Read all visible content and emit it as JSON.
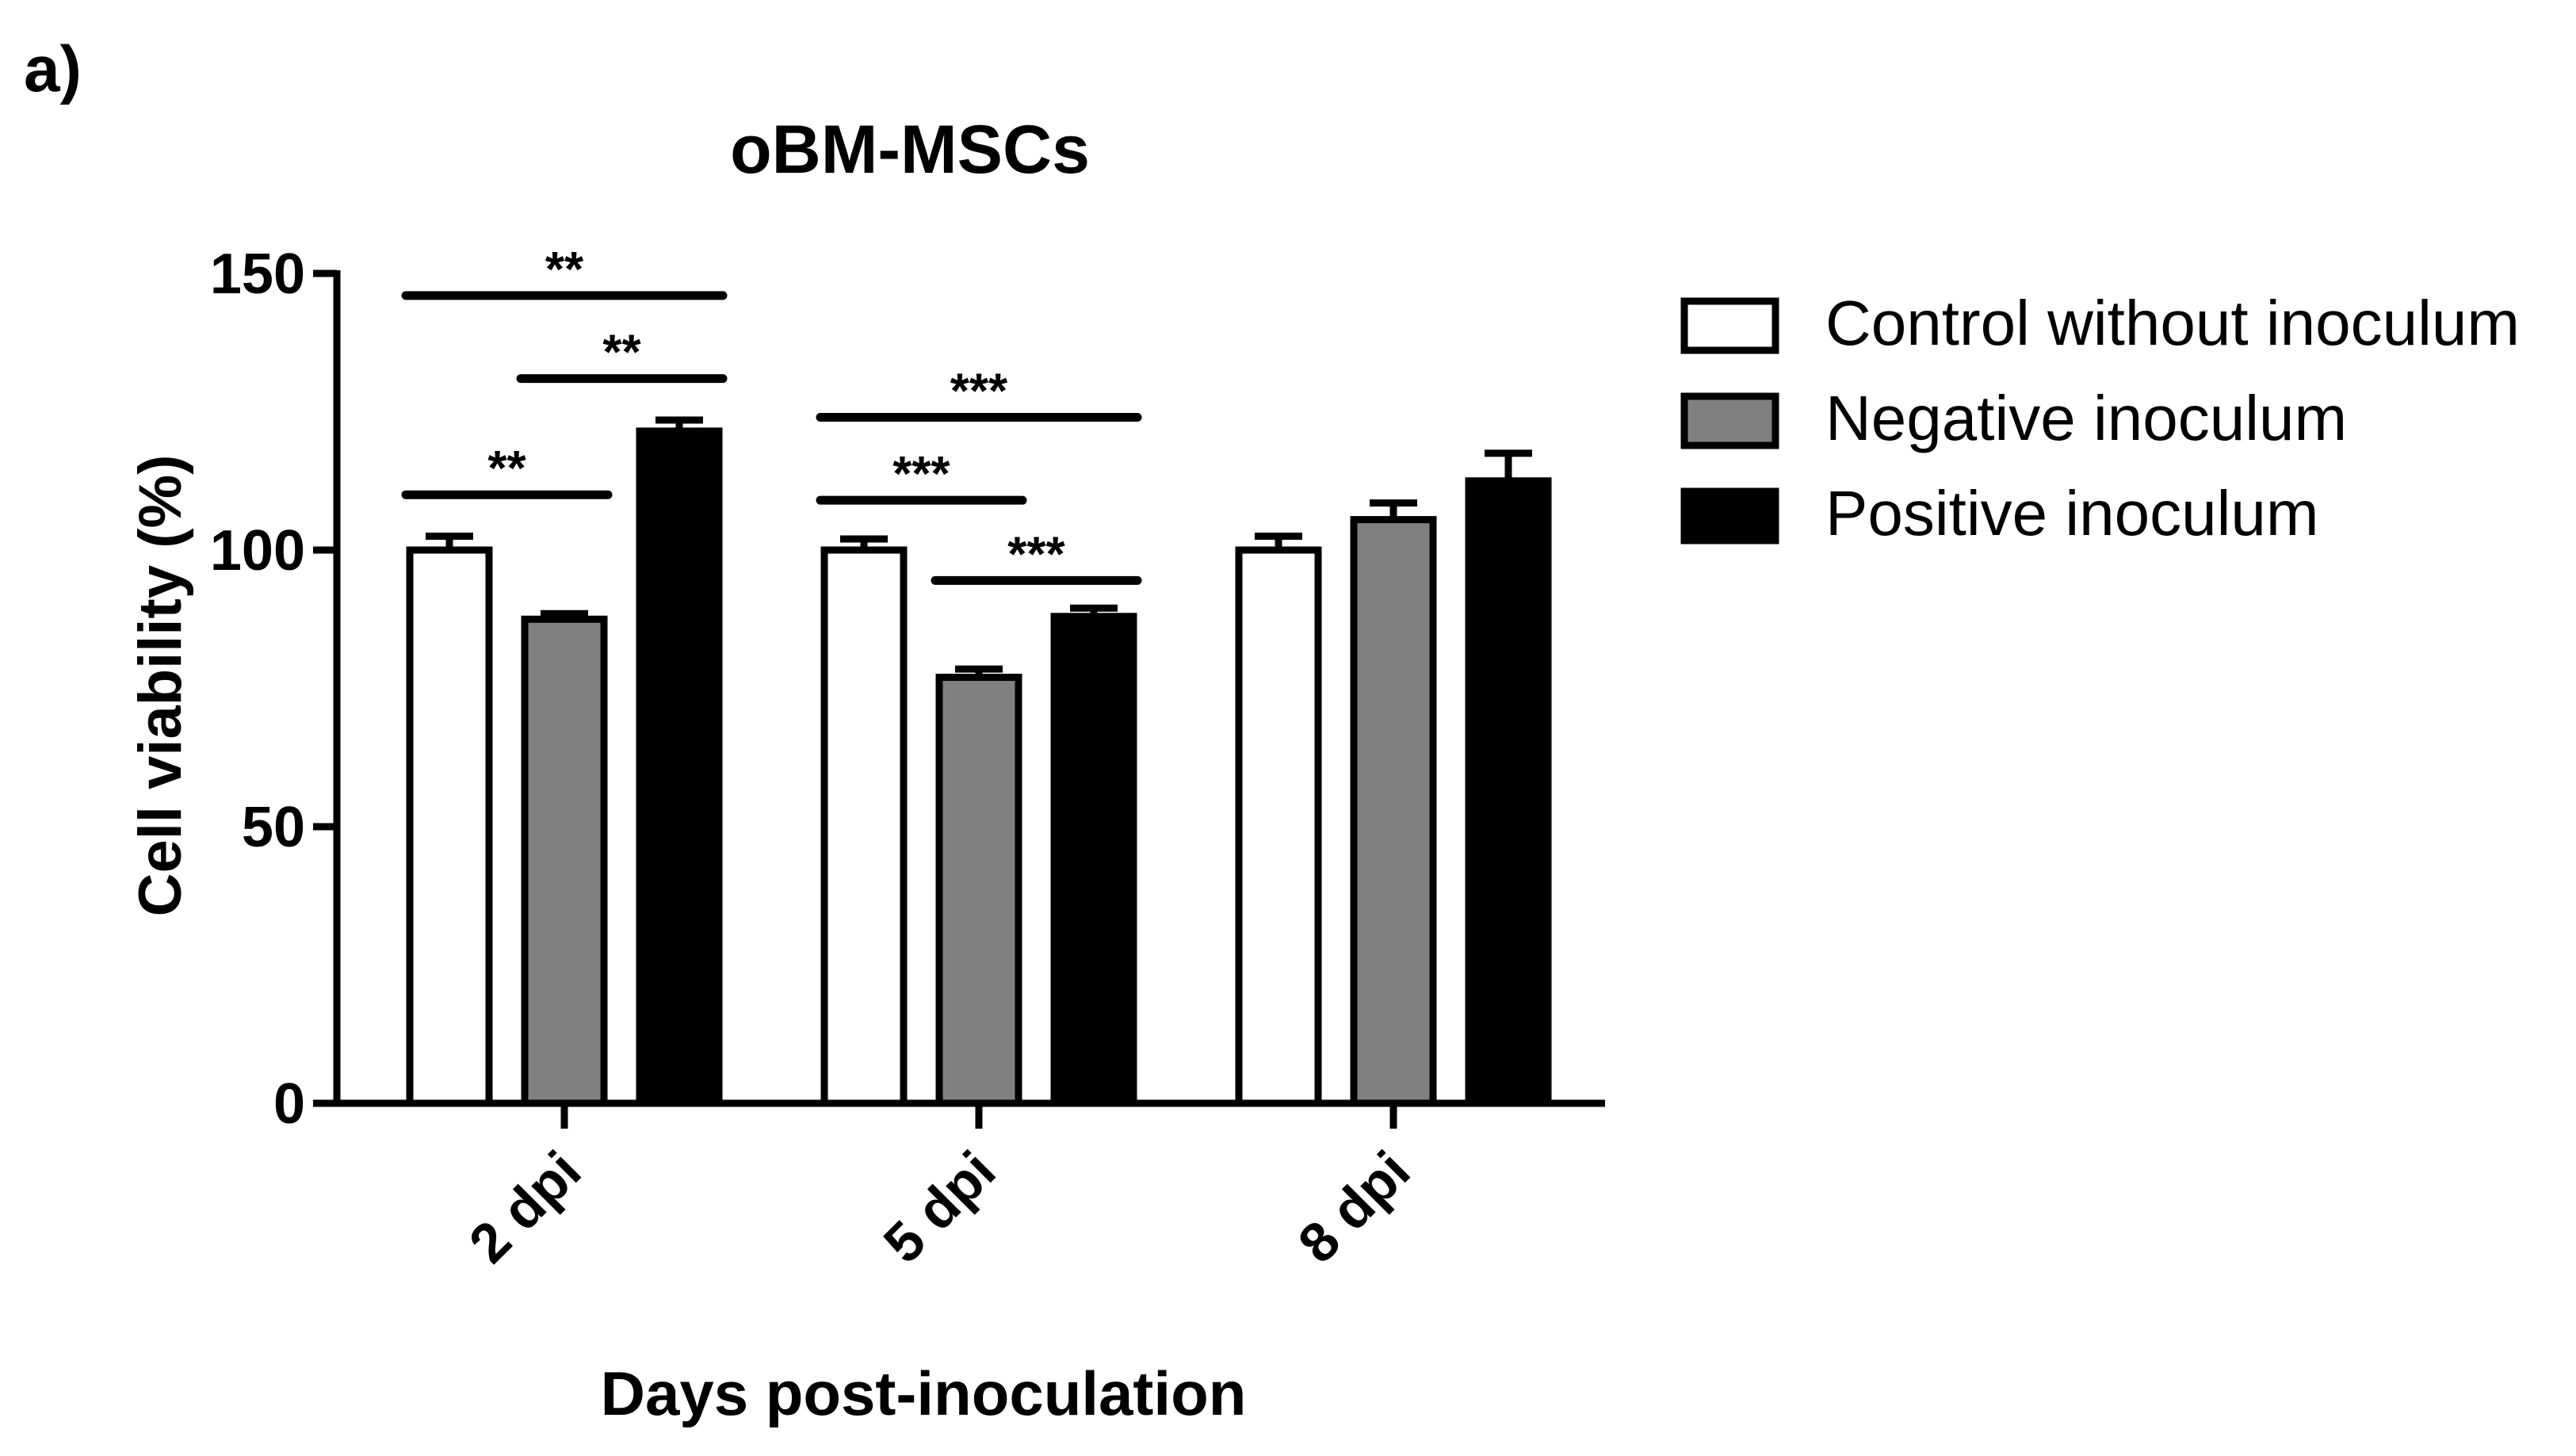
{
  "panel_label": "a)",
  "chart_data": {
    "type": "bar",
    "title": "oBM-MSCs",
    "xlabel": "Days post-inoculation",
    "ylabel": "Cell viability (%)",
    "ylim": [
      0,
      150
    ],
    "yticks": [
      0,
      50,
      100,
      150
    ],
    "categories": [
      "2 dpi",
      "5 dpi",
      "8 dpi"
    ],
    "series": [
      {
        "name": "Control without inoculum",
        "color": "#ffffff",
        "values": [
          100,
          100,
          100
        ],
        "errors": [
          2.5,
          2,
          2.5
        ]
      },
      {
        "name": "Negative inoculum",
        "color": "#808080",
        "values": [
          87.5,
          77,
          105.5
        ],
        "errors": [
          1,
          1.5,
          3
        ]
      },
      {
        "name": "Positive inoculum",
        "color": "#000000",
        "values": [
          121.5,
          88,
          112.5
        ],
        "errors": [
          2,
          1.5,
          5
        ]
      }
    ],
    "significance": [
      {
        "group": 0,
        "from": 0,
        "to": 1,
        "label": "**",
        "y": 110
      },
      {
        "group": 0,
        "from": 1,
        "to": 2,
        "label": "**",
        "y": 131
      },
      {
        "group": 0,
        "from": 0,
        "to": 2,
        "label": "**",
        "y": 146
      },
      {
        "group": 1,
        "from": 0,
        "to": 1,
        "label": "***",
        "y": 109
      },
      {
        "group": 1,
        "from": 1,
        "to": 2,
        "label": "***",
        "y": 94.5
      },
      {
        "group": 1,
        "from": 0,
        "to": 2,
        "label": "***",
        "y": 124
      }
    ],
    "legend_position": "right"
  }
}
